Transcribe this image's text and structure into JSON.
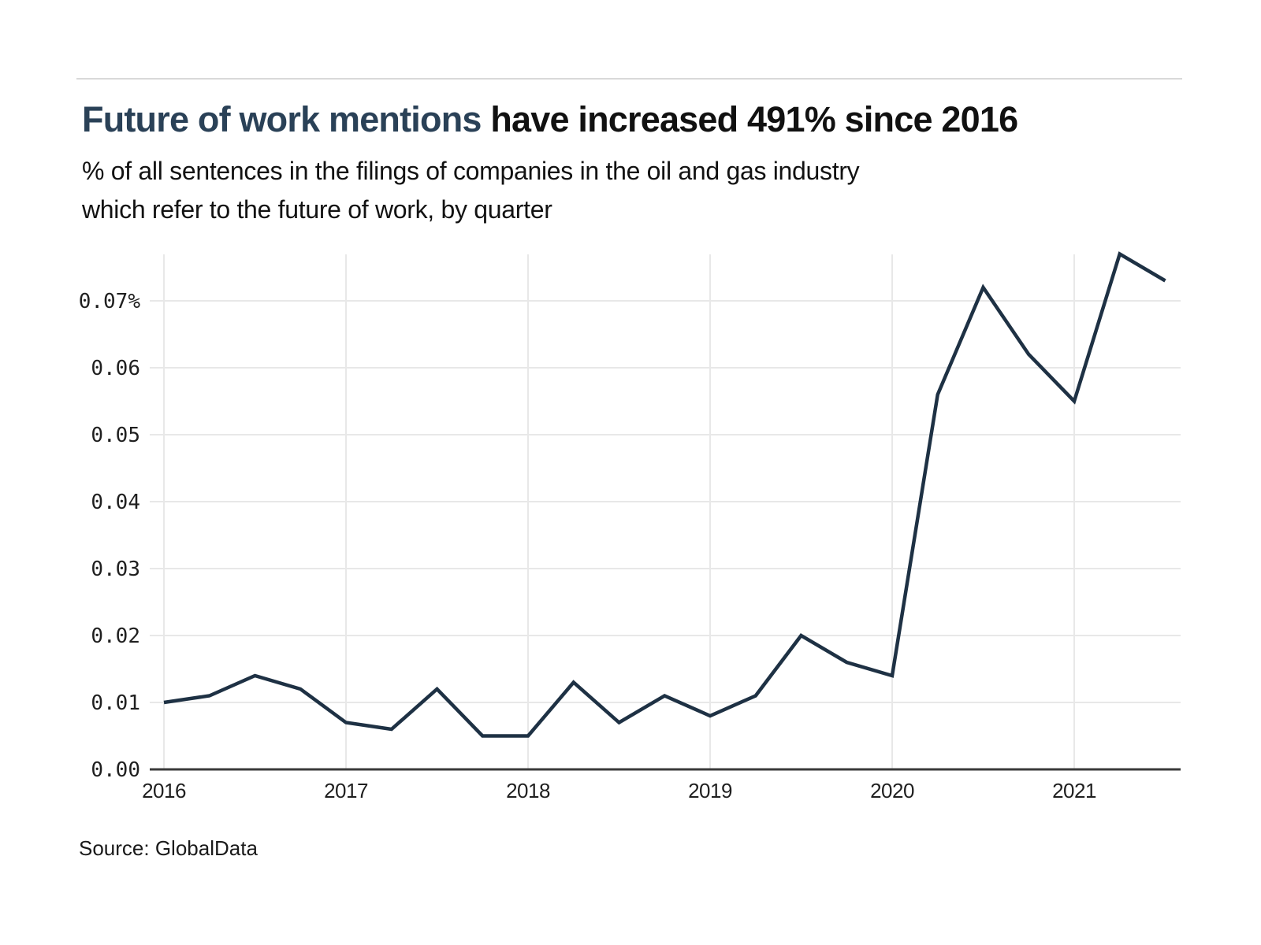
{
  "header": {
    "title_highlight": "Future of work mentions",
    "title_rest": " have increased 491% since 2016",
    "subtitle_line1": "% of all sentences in the filings of companies in the oil and gas industry",
    "subtitle_line2": "which refer to the future of work, by quarter"
  },
  "footer": {
    "source": "Source: GlobalData"
  },
  "colors": {
    "title_highlight": "#2a4157",
    "title_rest": "#111111",
    "line": "#1e3144",
    "grid": "#e8e8e8",
    "axis": "#3a3a3a",
    "tick_text": "#1f1f1f",
    "divider": "#d9d9d9",
    "background": "#ffffff"
  },
  "chart_data": {
    "type": "line",
    "title": "Future of work mentions have increased 491% since 2016",
    "subtitle": "% of all sentences in the filings of companies in the oil and gas industry which refer to the future of work, by quarter",
    "source": "Source: GlobalData",
    "unit": "%",
    "x": [
      "2016 Q1",
      "2016 Q2",
      "2016 Q3",
      "2016 Q4",
      "2017 Q1",
      "2017 Q2",
      "2017 Q3",
      "2017 Q4",
      "2018 Q1",
      "2018 Q2",
      "2018 Q3",
      "2018 Q4",
      "2019 Q1",
      "2019 Q2",
      "2019 Q3",
      "2019 Q4",
      "2020 Q1",
      "2020 Q2",
      "2020 Q3",
      "2020 Q4",
      "2021 Q1",
      "2021 Q2",
      "2021 Q3"
    ],
    "values": [
      0.01,
      0.011,
      0.014,
      0.012,
      0.007,
      0.006,
      0.012,
      0.005,
      0.005,
      0.013,
      0.007,
      0.011,
      0.008,
      0.011,
      0.02,
      0.016,
      0.014,
      0.056,
      0.072,
      0.062,
      0.055,
      0.077,
      0.073
    ],
    "y_ticks": [
      0.0,
      0.01,
      0.02,
      0.03,
      0.04,
      0.05,
      0.06,
      0.07
    ],
    "y_tick_labels": [
      "0.00",
      "0.01",
      "0.02",
      "0.03",
      "0.04",
      "0.05",
      "0.06",
      "0.07%"
    ],
    "x_tick_labels": [
      "2016",
      "2017",
      "2018",
      "2019",
      "2020",
      "2021"
    ],
    "x_tick_indices": [
      0,
      4,
      8,
      12,
      16,
      20
    ],
    "ylim": [
      0,
      0.077
    ],
    "grid": true,
    "legend": "none"
  }
}
